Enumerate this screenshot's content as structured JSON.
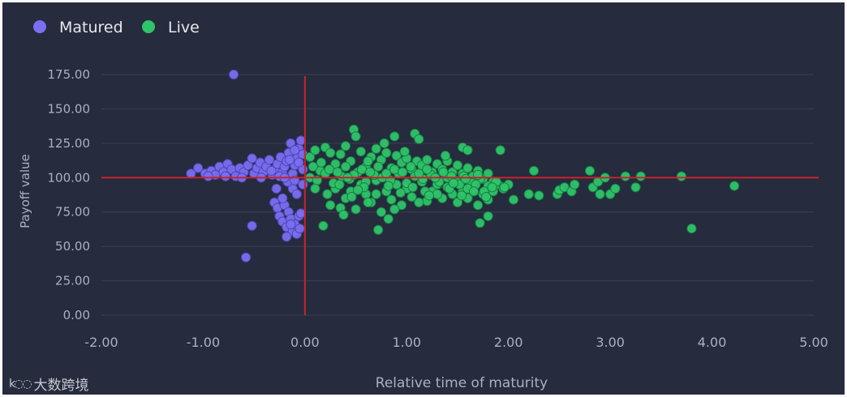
{
  "chart_data": {
    "type": "scatter",
    "xlabel": "Relative time of maturity",
    "ylabel": "Payoff value",
    "xlim": [
      -2.0,
      5.0
    ],
    "ylim": [
      0.0,
      175.0
    ],
    "x_ticks": [
      "-2.00",
      "-1.00",
      "0.00",
      "1.00",
      "2.00",
      "3.00",
      "4.00",
      "5.00"
    ],
    "y_ticks": [
      "0.00",
      "25.00",
      "50.00",
      "75.00",
      "100.00",
      "125.00",
      "150.00",
      "175.00"
    ],
    "grid": "horizontal",
    "legend": "top-left",
    "reference_lines": {
      "x": 0.0,
      "y": 100.0,
      "color": "#c8232c"
    },
    "series": [
      {
        "name": "Matured",
        "color": "#7a6ff0",
        "points": [
          [
            -0.7,
            175
          ],
          [
            -0.58,
            42
          ],
          [
            -0.52,
            65
          ],
          [
            -1.12,
            103
          ],
          [
            -1.05,
            107
          ],
          [
            -0.98,
            103
          ],
          [
            -0.92,
            105
          ],
          [
            -0.88,
            102
          ],
          [
            -0.84,
            108
          ],
          [
            -0.8,
            104
          ],
          [
            -0.76,
            110
          ],
          [
            -0.72,
            106
          ],
          [
            -0.68,
            101
          ],
          [
            -0.64,
            107
          ],
          [
            -0.6,
            104
          ],
          [
            -0.56,
            109
          ],
          [
            -0.52,
            114
          ],
          [
            -0.5,
            103
          ],
          [
            -0.47,
            107
          ],
          [
            -0.44,
            111
          ],
          [
            -0.41,
            104
          ],
          [
            -0.38,
            108
          ],
          [
            -0.35,
            113
          ],
          [
            -0.32,
            102
          ],
          [
            -0.3,
            106
          ],
          [
            -0.27,
            110
          ],
          [
            -0.24,
            115
          ],
          [
            -0.22,
            104
          ],
          [
            -0.2,
            108
          ],
          [
            -0.18,
            112
          ],
          [
            -0.16,
            118
          ],
          [
            -0.14,
            125
          ],
          [
            -0.12,
            103
          ],
          [
            -0.1,
            109
          ],
          [
            -0.08,
            114
          ],
          [
            -0.06,
            121
          ],
          [
            -0.04,
            127
          ],
          [
            -0.02,
            106
          ],
          [
            -0.02,
            117
          ],
          [
            -0.06,
            111
          ],
          [
            -0.1,
            120
          ],
          [
            -0.15,
            113
          ],
          [
            -0.25,
            101
          ],
          [
            -0.33,
            105
          ],
          [
            -0.43,
            100
          ],
          [
            -0.62,
            100
          ],
          [
            -0.78,
            101
          ],
          [
            -0.95,
            101
          ],
          [
            -0.3,
            82
          ],
          [
            -0.27,
            78
          ],
          [
            -0.25,
            72
          ],
          [
            -0.22,
            68
          ],
          [
            -0.2,
            80
          ],
          [
            -0.18,
            64
          ],
          [
            -0.16,
            75
          ],
          [
            -0.14,
            70
          ],
          [
            -0.12,
            61
          ],
          [
            -0.1,
            66
          ],
          [
            -0.08,
            59
          ],
          [
            -0.06,
            72
          ],
          [
            -0.05,
            63
          ],
          [
            -0.04,
            74
          ],
          [
            -0.12,
            92
          ],
          [
            -0.08,
            88
          ],
          [
            -0.22,
            85
          ],
          [
            -0.17,
            97
          ],
          [
            -0.28,
            92
          ],
          [
            -0.02,
            95
          ],
          [
            -0.1,
            98
          ],
          [
            -0.2,
            100
          ],
          [
            -0.18,
            57
          ],
          [
            -0.14,
            66
          ]
        ]
      },
      {
        "name": "Live",
        "color": "#2ec46a",
        "points": [
          [
            0.18,
            65
          ],
          [
            0.48,
            135
          ],
          [
            0.5,
            130
          ],
          [
            0.72,
            62
          ],
          [
            0.82,
            70
          ],
          [
            0.88,
            130
          ],
          [
            1.08,
            132
          ],
          [
            1.12,
            128
          ],
          [
            1.55,
            122
          ],
          [
            1.6,
            120
          ],
          [
            1.72,
            67
          ],
          [
            1.8,
            72
          ],
          [
            1.92,
            120
          ],
          [
            2.05,
            84
          ],
          [
            2.2,
            88
          ],
          [
            2.25,
            105
          ],
          [
            2.3,
            87
          ],
          [
            2.48,
            88
          ],
          [
            2.5,
            91
          ],
          [
            2.55,
            93
          ],
          [
            2.62,
            90
          ],
          [
            2.65,
            95
          ],
          [
            2.8,
            105
          ],
          [
            2.83,
            93
          ],
          [
            2.88,
            97
          ],
          [
            2.9,
            88
          ],
          [
            2.95,
            100
          ],
          [
            3.0,
            88
          ],
          [
            3.05,
            92
          ],
          [
            3.15,
            101
          ],
          [
            3.25,
            93
          ],
          [
            3.3,
            101
          ],
          [
            3.7,
            101
          ],
          [
            3.8,
            63
          ],
          [
            4.22,
            94
          ],
          [
            0.25,
            80
          ],
          [
            0.3,
            92
          ],
          [
            0.35,
            78
          ],
          [
            0.4,
            85
          ],
          [
            0.45,
            90
          ],
          [
            0.5,
            77
          ],
          [
            0.55,
            95
          ],
          [
            0.6,
            88
          ],
          [
            0.65,
            82
          ],
          [
            0.7,
            98
          ],
          [
            0.75,
            75
          ],
          [
            0.8,
            90
          ],
          [
            0.85,
            84
          ],
          [
            0.9,
            95
          ],
          [
            0.95,
            80
          ],
          [
            1.0,
            92
          ],
          [
            1.05,
            86
          ],
          [
            1.15,
            97
          ],
          [
            1.2,
            83
          ],
          [
            1.25,
            90
          ],
          [
            1.3,
            95
          ],
          [
            1.35,
            85
          ],
          [
            1.4,
            93
          ],
          [
            1.45,
            88
          ],
          [
            1.5,
            82
          ],
          [
            1.55,
            90
          ],
          [
            1.6,
            85
          ],
          [
            1.65,
            92
          ],
          [
            1.7,
            80
          ],
          [
            1.75,
            88
          ],
          [
            1.8,
            84
          ],
          [
            1.85,
            90
          ],
          [
            1.9,
            95
          ],
          [
            1.95,
            92
          ],
          [
            2.0,
            95
          ],
          [
            0.05,
            115
          ],
          [
            0.1,
            120
          ],
          [
            0.15,
            105
          ],
          [
            0.2,
            122
          ],
          [
            0.25,
            118
          ],
          [
            0.3,
            110
          ],
          [
            0.35,
            117
          ],
          [
            0.4,
            123
          ],
          [
            0.45,
            112
          ],
          [
            0.55,
            119
          ],
          [
            0.6,
            108
          ],
          [
            0.65,
            115
          ],
          [
            0.7,
            121
          ],
          [
            0.75,
            113
          ],
          [
            0.8,
            118
          ],
          [
            0.85,
            107
          ],
          [
            0.9,
            116
          ],
          [
            0.95,
            111
          ],
          [
            1.0,
            114
          ],
          [
            1.05,
            106
          ],
          [
            1.1,
            112
          ],
          [
            1.15,
            109
          ],
          [
            1.2,
            113
          ],
          [
            1.25,
            104
          ],
          [
            1.3,
            110
          ],
          [
            1.35,
            106
          ],
          [
            1.4,
            112
          ],
          [
            1.45,
            104
          ],
          [
            1.5,
            109
          ],
          [
            1.55,
            103
          ],
          [
            1.6,
            107
          ],
          [
            1.65,
            101
          ],
          [
            1.7,
            105
          ],
          [
            1.75,
            99
          ],
          [
            1.8,
            103
          ],
          [
            1.85,
            97
          ],
          [
            0.05,
            100
          ],
          [
            0.12,
            98
          ],
          [
            0.2,
            103
          ],
          [
            0.28,
            96
          ],
          [
            0.36,
            101
          ],
          [
            0.44,
            99
          ],
          [
            0.52,
            104
          ],
          [
            0.6,
            97
          ],
          [
            0.68,
            102
          ],
          [
            0.76,
            100
          ],
          [
            0.84,
            98
          ],
          [
            0.92,
            103
          ],
          [
            1.0,
            96
          ],
          [
            1.08,
            101
          ],
          [
            1.16,
            99
          ],
          [
            1.24,
            102
          ],
          [
            1.32,
            97
          ],
          [
            1.4,
            100
          ],
          [
            1.48,
            98
          ],
          [
            1.56,
            101
          ],
          [
            1.64,
            96
          ],
          [
            1.72,
            99
          ],
          [
            1.8,
            94
          ],
          [
            1.88,
            97
          ],
          [
            1.96,
            93
          ],
          [
            0.08,
            108
          ],
          [
            0.16,
            111
          ],
          [
            0.24,
            106
          ],
          [
            0.32,
            104
          ],
          [
            0.4,
            108
          ],
          [
            0.48,
            102
          ],
          [
            0.56,
            106
          ],
          [
            0.64,
            104
          ],
          [
            0.72,
            108
          ],
          [
            0.8,
            103
          ],
          [
            0.88,
            106
          ],
          [
            0.96,
            104
          ],
          [
            1.04,
            108
          ],
          [
            1.12,
            103
          ],
          [
            1.2,
            106
          ],
          [
            1.28,
            100
          ],
          [
            1.36,
            104
          ],
          [
            1.44,
            101
          ],
          [
            1.52,
            95
          ],
          [
            1.6,
            92
          ],
          [
            1.68,
            95
          ],
          [
            1.76,
            90
          ],
          [
            1.84,
            93
          ],
          [
            0.1,
            92
          ],
          [
            0.22,
            88
          ],
          [
            0.34,
            95
          ],
          [
            0.46,
            86
          ],
          [
            0.58,
            93
          ],
          [
            0.7,
            88
          ],
          [
            0.82,
            94
          ],
          [
            0.94,
            89
          ],
          [
            1.06,
            93
          ],
          [
            1.18,
            90
          ],
          [
            1.3,
            88
          ],
          [
            1.42,
            92
          ],
          [
            1.54,
            87
          ],
          [
            1.66,
            90
          ],
          [
            1.78,
            86
          ],
          [
            0.42,
            100
          ],
          [
            0.62,
            112
          ],
          [
            0.78,
            125
          ],
          [
            0.98,
            119
          ],
          [
            1.38,
            116
          ],
          [
            1.22,
            87
          ],
          [
            1.46,
            96
          ],
          [
            1.58,
            99
          ],
          [
            1.7,
            102
          ],
          [
            0.52,
            91
          ],
          [
            0.88,
            77
          ],
          [
            1.12,
            82
          ],
          [
            0.38,
            73
          ],
          [
            0.62,
            82
          ]
        ]
      }
    ]
  }
}
